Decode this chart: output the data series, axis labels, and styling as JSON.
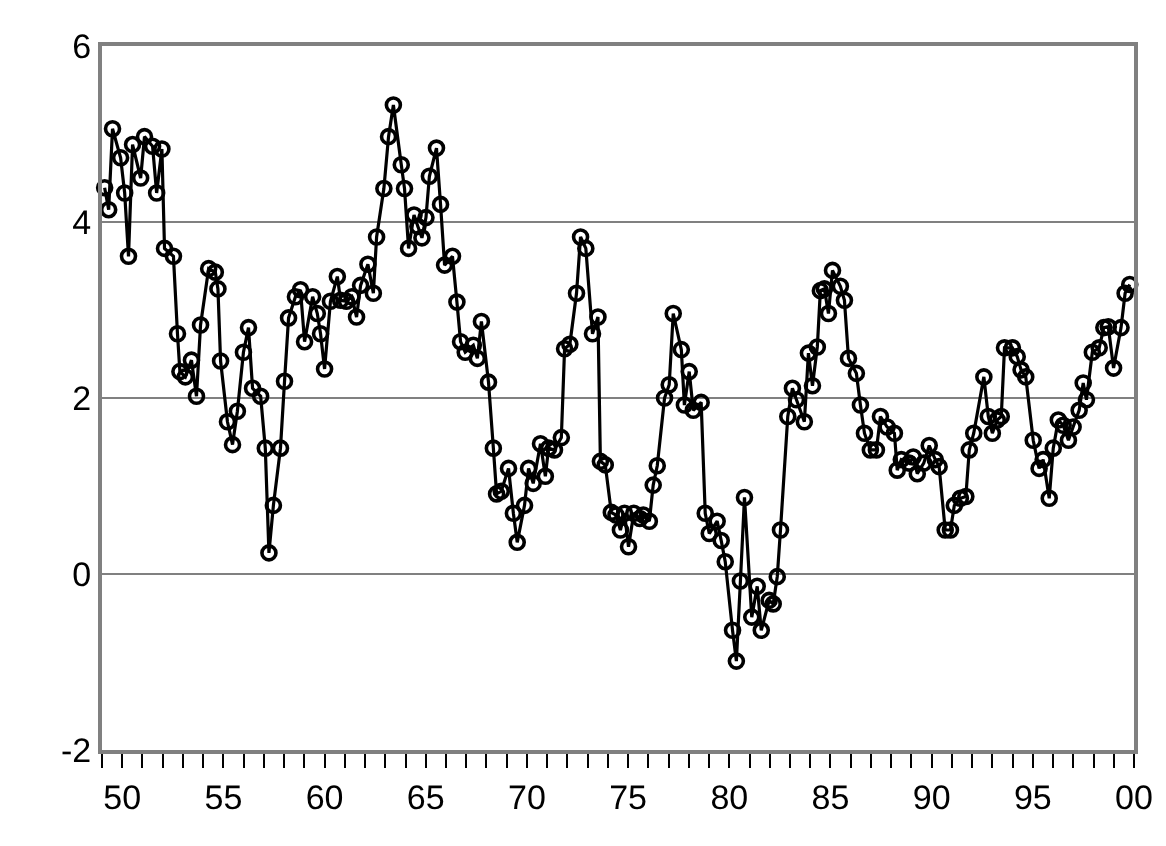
{
  "chart_data": {
    "type": "line",
    "marker": "circle",
    "line_style": "solid",
    "grid": "y",
    "xlim": [
      1949,
      2000
    ],
    "ylim": [
      -2,
      6
    ],
    "yticks": [
      -2,
      0,
      2,
      4,
      6
    ],
    "xticks": [
      {
        "value": 1949,
        "label": null
      },
      {
        "value": 1950,
        "label": "50"
      },
      {
        "value": 1951,
        "label": null
      },
      {
        "value": 1952,
        "label": null
      },
      {
        "value": 1953,
        "label": null
      },
      {
        "value": 1954,
        "label": null
      },
      {
        "value": 1955,
        "label": "55"
      },
      {
        "value": 1956,
        "label": null
      },
      {
        "value": 1957,
        "label": null
      },
      {
        "value": 1958,
        "label": null
      },
      {
        "value": 1959,
        "label": null
      },
      {
        "value": 1960,
        "label": "60"
      },
      {
        "value": 1961,
        "label": null
      },
      {
        "value": 1962,
        "label": null
      },
      {
        "value": 1963,
        "label": null
      },
      {
        "value": 1964,
        "label": null
      },
      {
        "value": 1965,
        "label": "65"
      },
      {
        "value": 1966,
        "label": null
      },
      {
        "value": 1967,
        "label": null
      },
      {
        "value": 1968,
        "label": null
      },
      {
        "value": 1969,
        "label": null
      },
      {
        "value": 1970,
        "label": "70"
      },
      {
        "value": 1971,
        "label": null
      },
      {
        "value": 1972,
        "label": null
      },
      {
        "value": 1973,
        "label": null
      },
      {
        "value": 1974,
        "label": null
      },
      {
        "value": 1975,
        "label": "75"
      },
      {
        "value": 1976,
        "label": null
      },
      {
        "value": 1977,
        "label": null
      },
      {
        "value": 1978,
        "label": null
      },
      {
        "value": 1979,
        "label": null
      },
      {
        "value": 1980,
        "label": "80"
      },
      {
        "value": 1981,
        "label": null
      },
      {
        "value": 1982,
        "label": null
      },
      {
        "value": 1983,
        "label": null
      },
      {
        "value": 1984,
        "label": null
      },
      {
        "value": 1985,
        "label": "85"
      },
      {
        "value": 1986,
        "label": null
      },
      {
        "value": 1987,
        "label": null
      },
      {
        "value": 1988,
        "label": null
      },
      {
        "value": 1989,
        "label": null
      },
      {
        "value": 1990,
        "label": "90"
      },
      {
        "value": 1991,
        "label": null
      },
      {
        "value": 1992,
        "label": null
      },
      {
        "value": 1993,
        "label": null
      },
      {
        "value": 1994,
        "label": null
      },
      {
        "value": 1995,
        "label": "95"
      },
      {
        "value": 1996,
        "label": null
      },
      {
        "value": 1997,
        "label": null
      },
      {
        "value": 1998,
        "label": null
      },
      {
        "value": 1999,
        "label": null
      },
      {
        "value": 2000,
        "label": "00"
      }
    ],
    "series": [
      {
        "color": "#000000",
        "x": [
          1949.13,
          1949.33,
          1949.52,
          1949.92,
          1950.12,
          1950.31,
          1950.51,
          1950.91,
          1951.1,
          1951.5,
          1951.7,
          1951.96,
          1952.09,
          1952.53,
          1952.73,
          1952.85,
          1953.12,
          1953.42,
          1953.67,
          1953.87,
          1954.27,
          1954.6,
          1954.73,
          1954.86,
          1955.2,
          1955.45,
          1955.69,
          1955.99,
          1956.24,
          1956.44,
          1956.84,
          1957.07,
          1957.25,
          1957.47,
          1957.82,
          1958.02,
          1958.22,
          1958.56,
          1958.81,
          1959.01,
          1959.41,
          1959.64,
          1959.8,
          1960.0,
          1960.29,
          1960.63,
          1960.79,
          1961.08,
          1961.35,
          1961.58,
          1961.78,
          1962.14,
          1962.41,
          1962.57,
          1962.93,
          1963.16,
          1963.4,
          1963.79,
          1963.95,
          1964.15,
          1964.42,
          1964.61,
          1964.81,
          1965.01,
          1965.18,
          1965.53,
          1965.73,
          1965.93,
          1966.32,
          1966.54,
          1966.72,
          1966.95,
          1967.35,
          1967.55,
          1967.75,
          1968.1,
          1968.34,
          1968.5,
          1968.73,
          1969.09,
          1969.33,
          1969.52,
          1969.88,
          1970.08,
          1970.31,
          1970.67,
          1970.91,
          1971.07,
          1971.36,
          1971.7,
          1971.86,
          1972.12,
          1972.45,
          1972.65,
          1972.91,
          1973.24,
          1973.51,
          1973.63,
          1973.87,
          1974.17,
          1974.4,
          1974.62,
          1974.82,
          1975.02,
          1975.28,
          1975.58,
          1975.75,
          1976.05,
          1976.24,
          1976.44,
          1976.8,
          1977.03,
          1977.23,
          1977.63,
          1977.78,
          1978.02,
          1978.22,
          1978.61,
          1978.81,
          1979.01,
          1979.4,
          1979.6,
          1979.8,
          1980.16,
          1980.35,
          1980.55,
          1980.75,
          1981.11,
          1981.38,
          1981.58,
          1981.97,
          1982.17,
          1982.37,
          1982.53,
          1982.89,
          1983.12,
          1983.32,
          1983.71,
          1983.91,
          1984.11,
          1984.35,
          1984.5,
          1984.7,
          1984.9,
          1985.1,
          1985.49,
          1985.69,
          1985.89,
          1986.28,
          1986.48,
          1986.68,
          1986.97,
          1987.27,
          1987.47,
          1987.8,
          1988.16,
          1988.3,
          1988.5,
          1988.89,
          1989.09,
          1989.29,
          1989.61,
          1989.88,
          1990.18,
          1990.37,
          1990.67,
          1990.93,
          1991.12,
          1991.42,
          1991.69,
          1991.86,
          1992.08,
          1992.58,
          1992.8,
          1993.0,
          1993.24,
          1993.44,
          1993.6,
          1993.99,
          1994.23,
          1994.42,
          1994.65,
          1995.02,
          1995.31,
          1995.51,
          1995.81,
          1996.01,
          1996.26,
          1996.5,
          1996.76,
          1996.99,
          1997.29,
          1997.49,
          1997.65,
          1997.94,
          1998.28,
          1998.51,
          1998.73,
          1998.99,
          1999.36,
          1999.56,
          1999.79
        ],
        "values": [
          4.39,
          4.14,
          5.06,
          4.73,
          4.33,
          3.61,
          4.88,
          4.5,
          4.97,
          4.86,
          4.33,
          4.83,
          3.7,
          3.61,
          2.73,
          2.3,
          2.24,
          2.43,
          2.02,
          2.83,
          3.47,
          3.43,
          3.24,
          2.42,
          1.73,
          1.47,
          1.85,
          2.52,
          2.8,
          2.11,
          2.02,
          1.43,
          0.24,
          0.78,
          1.43,
          2.19,
          2.91,
          3.15,
          3.23,
          2.64,
          3.15,
          2.96,
          2.73,
          2.33,
          3.1,
          3.38,
          3.11,
          3.1,
          3.15,
          2.92,
          3.28,
          3.52,
          3.19,
          3.83,
          4.38,
          4.97,
          5.33,
          4.65,
          4.38,
          3.7,
          4.08,
          3.95,
          3.82,
          4.05,
          4.52,
          4.84,
          4.2,
          3.51,
          3.61,
          3.09,
          2.64,
          2.52,
          2.6,
          2.45,
          2.87,
          2.18,
          1.43,
          0.91,
          0.94,
          1.2,
          0.69,
          0.36,
          0.78,
          1.2,
          1.03,
          1.48,
          1.11,
          1.43,
          1.41,
          1.55,
          2.56,
          2.61,
          3.19,
          3.83,
          3.7,
          2.73,
          2.92,
          1.28,
          1.24,
          0.7,
          0.67,
          0.5,
          0.69,
          0.31,
          0.69,
          0.63,
          0.67,
          0.6,
          1.01,
          1.23,
          2.0,
          2.15,
          2.96,
          2.55,
          1.92,
          2.3,
          1.86,
          1.95,
          0.69,
          0.46,
          0.6,
          0.38,
          0.14,
          -0.64,
          -0.99,
          -0.08,
          0.87,
          -0.49,
          -0.14,
          -0.64,
          -0.3,
          -0.34,
          -0.03,
          0.5,
          1.79,
          2.11,
          1.98,
          1.73,
          2.51,
          2.14,
          2.58,
          3.22,
          3.24,
          2.96,
          3.45,
          3.27,
          3.11,
          2.45,
          2.28,
          1.92,
          1.6,
          1.41,
          1.41,
          1.79,
          1.67,
          1.6,
          1.18,
          1.3,
          1.26,
          1.33,
          1.14,
          1.26,
          1.46,
          1.3,
          1.22,
          0.5,
          0.5,
          0.78,
          0.86,
          0.88,
          1.41,
          1.6,
          2.24,
          1.79,
          1.6,
          1.75,
          1.79,
          2.57,
          2.57,
          2.47,
          2.32,
          2.24,
          1.52,
          1.2,
          1.3,
          0.86,
          1.43,
          1.75,
          1.69,
          1.52,
          1.67,
          1.86,
          2.17,
          1.98,
          2.52,
          2.57,
          2.8,
          2.81,
          2.34,
          2.8,
          3.19,
          3.29
        ]
      }
    ]
  }
}
